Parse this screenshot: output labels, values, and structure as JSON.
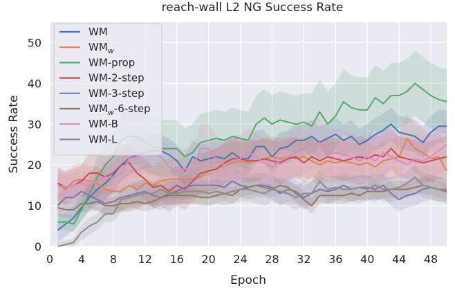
{
  "chart_data": {
    "type": "line",
    "title": "reach-wall L2 NG Success Rate",
    "xlabel": "Epoch",
    "ylabel": "Success Rate",
    "xlim": [
      0,
      50
    ],
    "ylim": [
      0,
      55
    ],
    "xticks": [
      0,
      4,
      8,
      12,
      16,
      20,
      24,
      28,
      32,
      36,
      40,
      44,
      48
    ],
    "yticks": [
      0,
      10,
      20,
      30,
      40,
      50
    ],
    "grid": true,
    "legend_position": "top-left",
    "background": "#eaeaf2",
    "x": [
      1,
      2,
      3,
      4,
      5,
      6,
      7,
      8,
      9,
      10,
      11,
      12,
      13,
      14,
      15,
      16,
      17,
      18,
      19,
      20,
      21,
      22,
      23,
      24,
      25,
      26,
      27,
      28,
      29,
      30,
      31,
      32,
      33,
      34,
      35,
      36,
      37,
      38,
      39,
      40,
      41,
      42,
      43,
      44,
      45,
      46,
      47,
      48,
      49,
      50
    ],
    "series": [
      {
        "name": "WM",
        "color": "#4c72b0",
        "values": [
          4,
          5.5,
          7,
          9.5,
          12,
          14,
          15.5,
          17.5,
          20,
          21.5,
          22.5,
          23,
          23.5,
          23.5,
          22.5,
          21,
          18.5,
          22,
          21,
          21.5,
          22,
          21.5,
          23,
          21.5,
          21.5,
          24.5,
          24.5,
          22,
          24,
          24.5,
          26,
          26,
          27,
          25.5,
          26.5,
          27.5,
          26,
          27,
          25,
          26,
          27.5,
          28.5,
          30,
          28,
          27.5,
          27,
          25.5,
          28,
          29.5,
          29.5
        ],
        "band": [
          3,
          3,
          3,
          3,
          3,
          4,
          4,
          4,
          4,
          4,
          4,
          4,
          4,
          4,
          4,
          4,
          4,
          4,
          4,
          4,
          4,
          4,
          4,
          4,
          4,
          4,
          4,
          4,
          4,
          4,
          4,
          4,
          4,
          4,
          4,
          4,
          4,
          4,
          4,
          4,
          4,
          4,
          4,
          4,
          4,
          4,
          4,
          4,
          4,
          4
        ]
      },
      {
        "name": "WMw",
        "color": "#dd8452",
        "values": [
          15,
          14,
          16,
          16.5,
          16,
          15.5,
          14,
          13.5,
          13.5,
          15,
          14,
          15.5,
          15,
          16,
          16.5,
          16.5,
          16.5,
          16.5,
          17,
          18.5,
          19,
          20,
          20.5,
          21,
          20.5,
          21,
          21.5,
          22,
          21.5,
          22,
          21.5,
          22,
          21,
          20,
          21,
          20.5,
          21,
          20.5,
          20,
          20.5,
          19.5,
          21,
          21.5,
          22,
          26.5,
          24,
          23,
          21.5,
          22,
          18.5
        ],
        "band": [
          4,
          4,
          4,
          4,
          4,
          4,
          4,
          4,
          5,
          5,
          5,
          5,
          5,
          5,
          5,
          5,
          5,
          5,
          5,
          5,
          5,
          5,
          5,
          5,
          5,
          5,
          5,
          5,
          5,
          5,
          5,
          5,
          5,
          5,
          5,
          5,
          5,
          5,
          5,
          5,
          5,
          5,
          5,
          5,
          6,
          6,
          6,
          6,
          6,
          6
        ]
      },
      {
        "name": "WM-prop",
        "color": "#55a868",
        "values": [
          6,
          6,
          5.5,
          9,
          13,
          17,
          20,
          22,
          26,
          27,
          27,
          25.5,
          24.5,
          24,
          24,
          24,
          22,
          23,
          25.5,
          26,
          26.5,
          26,
          27,
          26.5,
          26,
          30,
          31.5,
          30,
          31,
          30.5,
          30,
          30.5,
          29.5,
          33,
          30,
          32,
          35.5,
          34,
          33.5,
          33.5,
          36.5,
          35,
          37,
          37,
          38,
          40,
          38.5,
          37,
          36,
          35.5
        ],
        "band": [
          2,
          2,
          2,
          3,
          4,
          5,
          6,
          6,
          7,
          7,
          7,
          7,
          7,
          7,
          7,
          7,
          7,
          7,
          7,
          7,
          7,
          7,
          7,
          7,
          7,
          7,
          7,
          7,
          7,
          7,
          7,
          7,
          8,
          8,
          8,
          8,
          8,
          8,
          8,
          8,
          8,
          8,
          8,
          8,
          8,
          8,
          8,
          8,
          8,
          8
        ]
      },
      {
        "name": "WM-2-step",
        "color": "#c44e52",
        "values": [
          15.5,
          14.5,
          15,
          16,
          18,
          18,
          17,
          18,
          20,
          20.5,
          18,
          16.5,
          14.5,
          15,
          13.5,
          15,
          14,
          16,
          18,
          18.5,
          19,
          20.5,
          21.5,
          21.5,
          21,
          21,
          21.5,
          21,
          20.5,
          21.5,
          22,
          20.5,
          22,
          21,
          22,
          21.5,
          21,
          21.5,
          22,
          21.5,
          22.5,
          22,
          24,
          22,
          21.5,
          21,
          20.5,
          21,
          21.5,
          22
        ],
        "band": [
          4,
          4,
          4,
          4,
          5,
          5,
          5,
          5,
          5,
          5,
          5,
          5,
          5,
          5,
          5,
          5,
          5,
          5,
          5,
          5,
          5,
          5,
          5,
          5,
          5,
          5,
          5,
          5,
          5,
          5,
          5,
          5,
          5,
          5,
          5,
          5,
          5,
          5,
          5,
          5,
          5,
          5,
          5,
          5,
          5,
          5,
          5,
          5,
          5,
          5
        ]
      },
      {
        "name": "WM-3-step",
        "color": "#8172b3",
        "values": [
          10,
          12,
          12,
          13.5,
          12.5,
          11.5,
          10.5,
          11,
          12,
          12.5,
          13,
          13.5,
          12.5,
          12,
          13,
          13.5,
          14.5,
          15,
          15,
          15,
          15,
          14.5,
          16,
          15,
          14.5,
          15,
          15,
          14.5,
          13,
          14,
          13.5,
          12,
          13,
          14,
          13.5,
          14,
          15,
          14,
          14.5,
          14.5,
          14,
          15,
          13,
          11.5,
          12.5,
          13,
          14,
          14.5,
          14,
          13.5
        ],
        "band": [
          3,
          3,
          3,
          3,
          3,
          3,
          3,
          3,
          3,
          3,
          3,
          3,
          3,
          3,
          3,
          3,
          3,
          3,
          3,
          3,
          3,
          3,
          3,
          3,
          3,
          3,
          3,
          3,
          3,
          3,
          3,
          3,
          3,
          3,
          3,
          3,
          3,
          3,
          3,
          3,
          3,
          3,
          3,
          3,
          3,
          3,
          3,
          3,
          3,
          3
        ]
      },
      {
        "name": "WMw-6-step",
        "color": "#937860",
        "values": [
          9.5,
          9,
          9,
          10.5,
          10.5,
          11,
          10,
          10,
          10.5,
          10.5,
          11,
          10.5,
          11,
          12,
          12.5,
          12.5,
          12.5,
          12.5,
          12,
          12,
          12.5,
          13,
          12.5,
          14,
          14.5,
          15,
          14.5,
          14,
          15,
          14.5,
          13,
          11.5,
          10,
          12.5,
          12.5,
          12.5,
          12.5,
          13,
          12.5,
          13.5,
          13.5,
          13.5,
          14,
          14,
          14,
          14.5,
          15,
          14.5,
          14,
          13.5
        ],
        "band": [
          2,
          2,
          2,
          2,
          2,
          2,
          2,
          2,
          2,
          2,
          2,
          2,
          2,
          2,
          2,
          2,
          2,
          2,
          2,
          2,
          2,
          2,
          2,
          2,
          2,
          2,
          2,
          2,
          2,
          2,
          2,
          2,
          2,
          2,
          2,
          2,
          2,
          2,
          2,
          2,
          2,
          2,
          2,
          2,
          2,
          2,
          2,
          2,
          2,
          2
        ]
      },
      {
        "name": "WM-B",
        "color": "#da8bc3",
        "values": [
          15,
          14.5,
          15,
          15.5,
          15,
          16,
          17,
          17,
          18,
          21.5,
          22,
          23,
          23,
          22,
          19.5,
          18.5,
          19,
          19,
          24,
          24,
          21,
          20,
          21,
          21.5,
          23,
          22,
          20.5,
          19.5,
          21,
          22,
          23,
          24,
          25,
          25.5,
          22.5,
          23,
          22.5,
          22,
          21,
          22,
          21,
          23,
          22,
          21,
          20,
          21.5,
          21,
          22,
          23.5,
          25
        ],
        "band": [
          3,
          3,
          3,
          3,
          3,
          4,
          4,
          4,
          5,
          5,
          5,
          5,
          5,
          5,
          5,
          5,
          5,
          5,
          6,
          6,
          6,
          6,
          6,
          6,
          6,
          6,
          6,
          6,
          6,
          6,
          6,
          6,
          6,
          6,
          6,
          6,
          6,
          6,
          6,
          6,
          6,
          6,
          6,
          6,
          6,
          6,
          6,
          6,
          6,
          6
        ]
      },
      {
        "name": "WM-L",
        "color": "#8c8c8c",
        "values": [
          0,
          0.5,
          1,
          3.5,
          5,
          6,
          8,
          8,
          11.5,
          12,
          12.5,
          13,
          13,
          14,
          13,
          13,
          13.5,
          13.5,
          13.5,
          13,
          13.5,
          13,
          13.5,
          14,
          14,
          13.5,
          13,
          14,
          13.5,
          13,
          12,
          13,
          13,
          16,
          14,
          14.5,
          14,
          14,
          14.5,
          14,
          15,
          14,
          14,
          14.5,
          15.5,
          17,
          15,
          14.5,
          14,
          14
        ],
        "band": [
          1,
          1,
          1,
          2,
          2,
          2,
          2,
          2,
          3,
          3,
          3,
          3,
          3,
          3,
          3,
          3,
          3,
          3,
          3,
          3,
          3,
          3,
          3,
          3,
          3,
          3,
          3,
          3,
          3,
          3,
          3,
          3,
          3,
          3,
          3,
          3,
          3,
          3,
          3,
          3,
          3,
          3,
          3,
          3,
          3,
          3,
          3,
          3,
          3,
          3
        ]
      }
    ]
  }
}
